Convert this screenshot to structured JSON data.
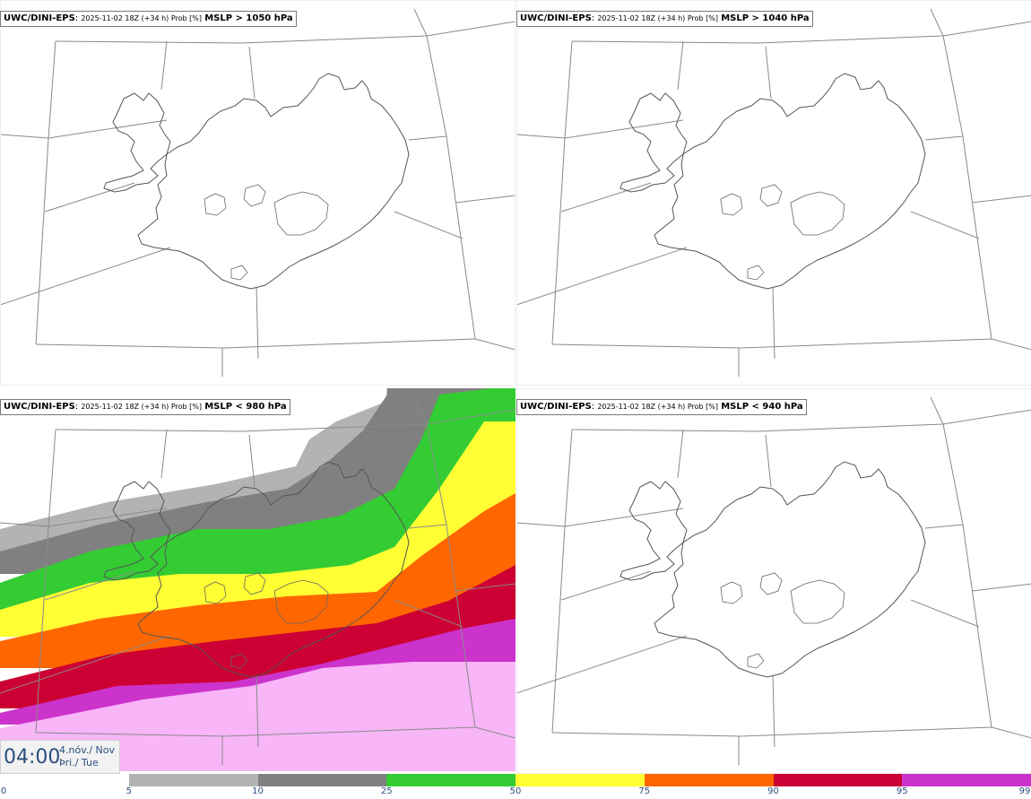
{
  "panels": [
    {
      "model": "UWC/DINI-EPS",
      "run": "2025-11-02 18Z (+34 h) Prob [%]",
      "threshold": "MSLP > 1050 hPa",
      "filled": false
    },
    {
      "model": "UWC/DINI-EPS",
      "run": "2025-11-02 18Z (+34 h) Prob [%]",
      "threshold": "MSLP > 1040 hPa",
      "filled": false
    },
    {
      "model": "UWC/DINI-EPS",
      "run": "2025-11-02 18Z (+34 h) Prob [%]",
      "threshold": "MSLP < 980 hPa",
      "filled": true
    },
    {
      "model": "UWC/DINI-EPS",
      "run": "2025-11-02 18Z (+34 h) Prob [%]",
      "threshold": "MSLP < 940 hPa",
      "filled": false
    }
  ],
  "time": {
    "hour": "04:00",
    "date_line1": "4.nóv./ Nov",
    "date_line2": "Þri./ Tue"
  },
  "colorbar": {
    "ticks": [
      "0",
      "5",
      "10",
      "25",
      "50",
      "75",
      "90",
      "95",
      "99"
    ],
    "colors": [
      "#ffffff",
      "#b3b3b3",
      "#808080",
      "#33cc33",
      "#ffff33",
      "#ff6600",
      "#cc0033",
      "#cc33cc",
      "#f8b5f8"
    ]
  }
}
